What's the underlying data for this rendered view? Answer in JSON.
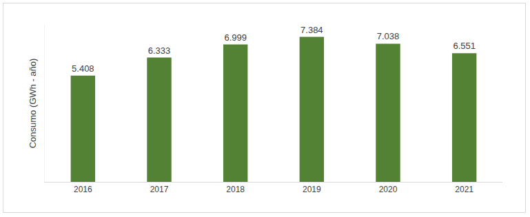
{
  "chart_data": {
    "type": "bar",
    "y_label": "Consumo (GWh - año)",
    "categories": [
      "2016",
      "2017",
      "2018",
      "2019",
      "2020",
      "2021"
    ],
    "values": [
      5408,
      6333,
      6999,
      7384,
      7038,
      6551
    ],
    "value_labels": [
      "5.408",
      "6.333",
      "6.999",
      "7.384",
      "7.038",
      "6.551"
    ],
    "color": "#548235",
    "ylim": [
      0,
      8000
    ],
    "yticks": [
      0
    ],
    "grid": false,
    "data_labels": true,
    "tick_labels": "x"
  }
}
